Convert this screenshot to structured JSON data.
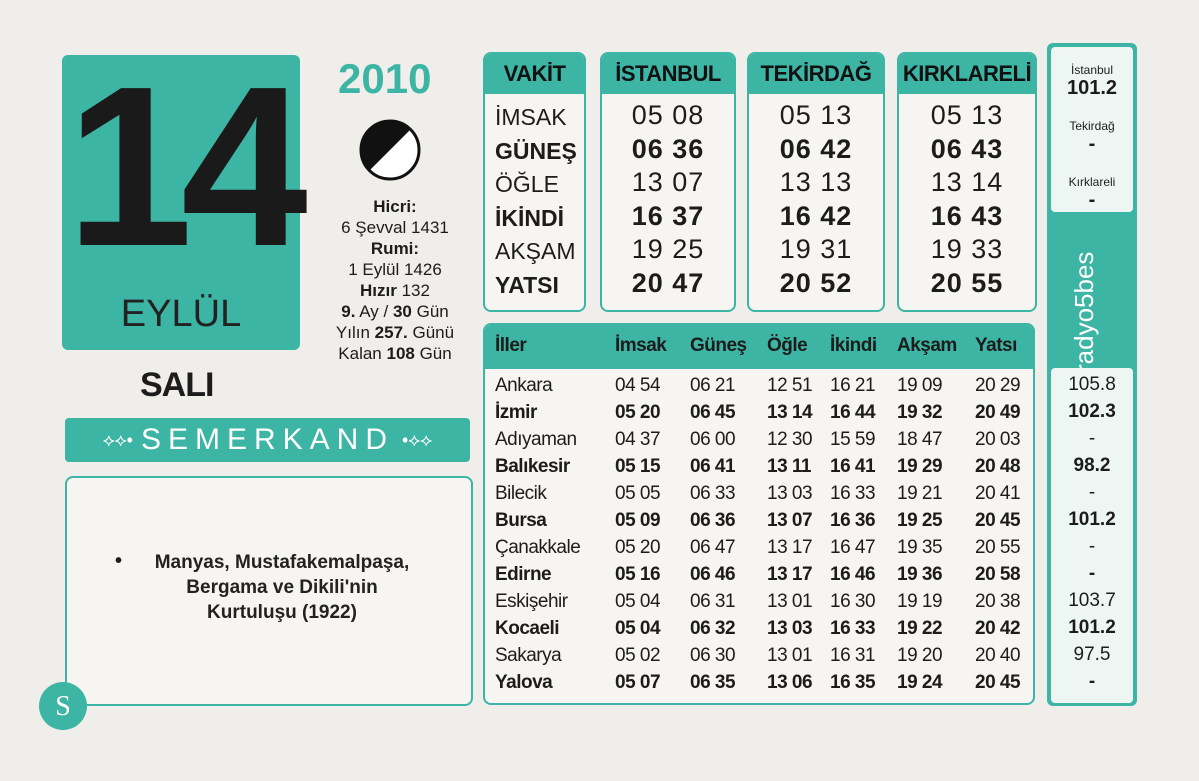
{
  "date": {
    "day": "14",
    "year": "2010",
    "month": "EYLÜL",
    "weekday": "SALI"
  },
  "info": [
    [
      {
        "t": "Hicri:",
        "b": true
      }
    ],
    [
      {
        "t": "6 Şevval 1431",
        "b": false
      }
    ],
    [
      {
        "t": "Rumi:",
        "b": true
      }
    ],
    [
      {
        "t": "1 Eylül 1426",
        "b": false
      }
    ],
    [
      {
        "t": "Hızır",
        "b": true
      },
      {
        "t": " 132",
        "b": false
      }
    ],
    [
      {
        "t": "9.",
        "b": true
      },
      {
        "t": " Ay / ",
        "b": false
      },
      {
        "t": "30",
        "b": true
      },
      {
        "t": " Gün",
        "b": false
      }
    ],
    [
      {
        "t": "Yılın ",
        "b": false
      },
      {
        "t": "257.",
        "b": true
      },
      {
        "t": " Günü",
        "b": false
      }
    ],
    [
      {
        "t": "Kalan ",
        "b": false
      },
      {
        "t": "108",
        "b": true
      },
      {
        "t": " Gün",
        "b": false
      }
    ]
  ],
  "brand": "SEMERKAND",
  "note": [
    "Manyas, Mustafakemalpaşa,",
    "Bergama ve Dikili'nin",
    "Kurtuluşu (1922)"
  ],
  "prayer_table": {
    "headers": [
      "VAKİT",
      "İSTANBUL",
      "TEKİRDAĞ",
      "KIRKLARELİ"
    ],
    "rows": [
      [
        "İMSAK",
        "05 08",
        "05 13",
        "05 13"
      ],
      [
        "GÜNEŞ",
        "06 36",
        "06 42",
        "06 43"
      ],
      [
        "ÖĞLE",
        "13 07",
        "13 13",
        "13 14"
      ],
      [
        "İKİNDİ",
        "16 37",
        "16 42",
        "16 43"
      ],
      [
        "AKŞAM",
        "19 25",
        "19 31",
        "19 33"
      ],
      [
        "YATSI",
        "20 47",
        "20 52",
        "20 55"
      ]
    ]
  },
  "cities_table": {
    "headers": [
      "İller",
      "İmsak",
      "Güneş",
      "Öğle",
      "İkindi",
      "Akşam",
      "Yatsı"
    ],
    "rows": [
      [
        "Ankara",
        "04 54",
        "06 21",
        "12 51",
        "16 21",
        "19 09",
        "20 29"
      ],
      [
        "İzmir",
        "05 20",
        "06 45",
        "13 14",
        "16 44",
        "19 32",
        "20 49"
      ],
      [
        "Adıyaman",
        "04 37",
        "06 00",
        "12 30",
        "15 59",
        "18 47",
        "20 03"
      ],
      [
        "Balıkesir",
        "05 15",
        "06 41",
        "13 11",
        "16 41",
        "19 29",
        "20 48"
      ],
      [
        "Bilecik",
        "05 05",
        "06 33",
        "13 03",
        "16 33",
        "19 21",
        "20 41"
      ],
      [
        "Bursa",
        "05 09",
        "06 36",
        "13 07",
        "16 36",
        "19 25",
        "20 45"
      ],
      [
        "Çanakkale",
        "05 20",
        "06 47",
        "13 17",
        "16 47",
        "19 35",
        "20 55"
      ],
      [
        "Edirne",
        "05 16",
        "06 46",
        "13 17",
        "16 46",
        "19 36",
        "20 58"
      ],
      [
        "Eskişehir",
        "05 04",
        "06 31",
        "13 01",
        "16 30",
        "19 19",
        "20 38"
      ],
      [
        "Kocaeli",
        "05 04",
        "06 32",
        "13 03",
        "16 33",
        "19 22",
        "20 42"
      ],
      [
        "Sakarya",
        "05 02",
        "06 30",
        "13 01",
        "16 31",
        "19 20",
        "20 40"
      ],
      [
        "Yalova",
        "05 07",
        "06 35",
        "13 06",
        "16 35",
        "19 24",
        "20 45"
      ]
    ]
  },
  "radio": {
    "name": "radyo5bes",
    "top": [
      [
        "İstanbul",
        "101.2"
      ],
      [
        "Tekirdağ",
        "-"
      ],
      [
        "Kırklareli",
        "-"
      ]
    ],
    "frequencies": [
      "105.8",
      "102.3",
      "-",
      "98.2",
      "-",
      "101.2",
      "-",
      "-",
      "103.7",
      "101.2",
      "97.5",
      "-"
    ]
  }
}
